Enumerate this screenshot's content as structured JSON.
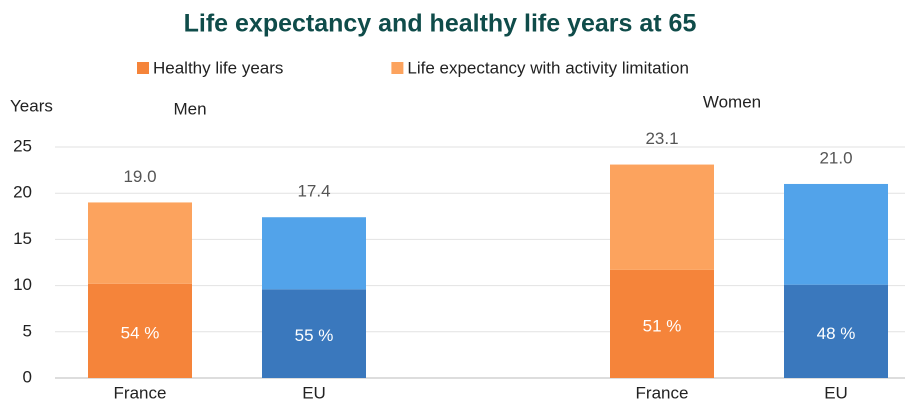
{
  "chart_data": {
    "type": "stacked_bar",
    "title": "Life expectancy and healthy life years at 65",
    "y_label": "Years",
    "groups": [
      "Men",
      "Women"
    ],
    "categories": [
      "France",
      "EU",
      "France",
      "EU"
    ],
    "series": [
      {
        "name": "Healthy life years",
        "color": "#f5843a",
        "colors": [
          "#f5843a",
          "#3a78bd",
          "#f5843a",
          "#3a78bd"
        ],
        "values": [
          10.2,
          9.6,
          11.7,
          10.1
        ],
        "shares": [
          {
            "value": 54,
            "label": "54 %"
          },
          {
            "value": 55,
            "label": "55 %"
          },
          {
            "value": 51,
            "label": "51 %"
          },
          {
            "value": 48,
            "label": "48 %"
          }
        ]
      },
      {
        "name": "Life expectancy with activity limitation",
        "color": "#fca35e",
        "colors": [
          "#fca35e",
          "#52a3ea",
          "#fca35e",
          "#52a3ea"
        ],
        "values": [
          8.8,
          7.8,
          11.4,
          10.9
        ]
      }
    ],
    "totals": [
      {
        "value": 19,
        "label": "19.0"
      },
      {
        "value": 17.4,
        "label": "17.4"
      },
      {
        "value": 23.1,
        "label": "23.1"
      },
      {
        "value": 21,
        "label": "21.0"
      }
    ],
    "ylim": [
      0,
      25
    ],
    "yticks": [
      0,
      5,
      10,
      15,
      20,
      25
    ],
    "grid": true
  }
}
